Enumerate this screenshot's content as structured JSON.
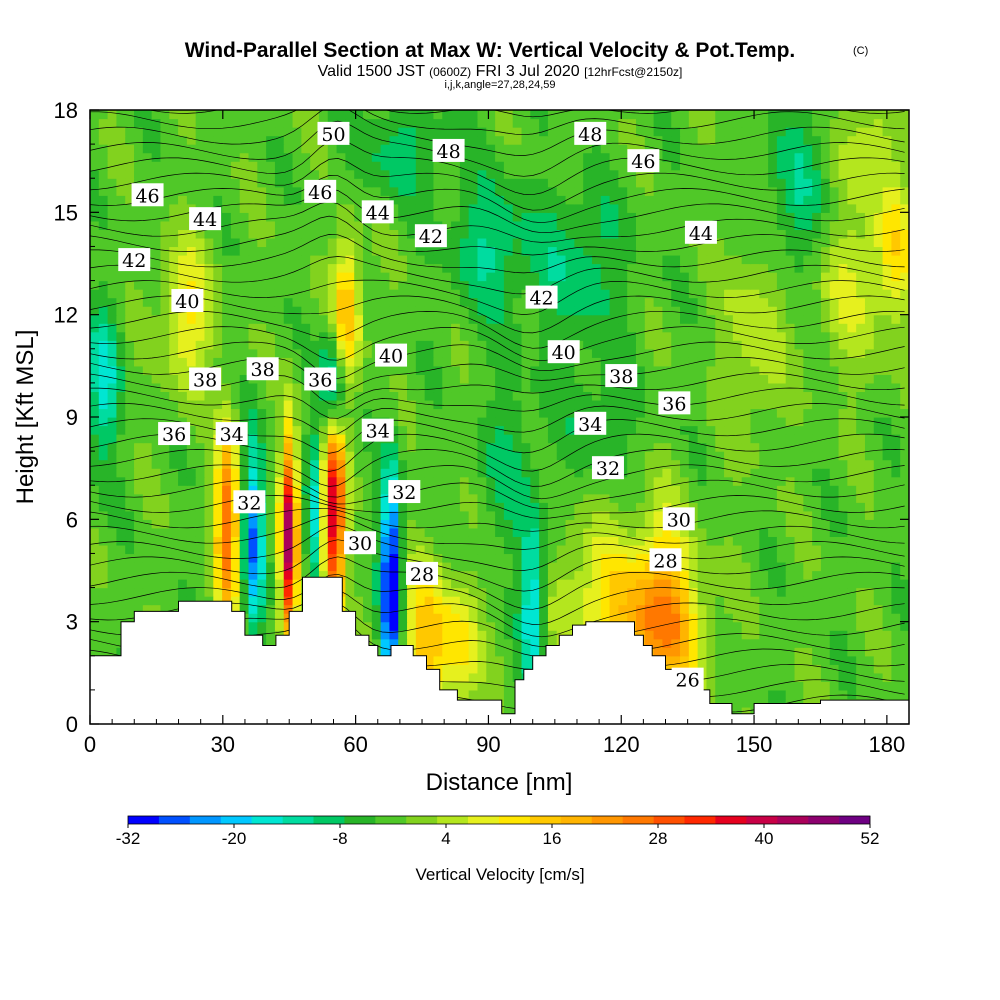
{
  "chart_data": {
    "type": "heatmap",
    "title": "Wind-Parallel Section at Max W: Vertical Velocity & Pot.Temp.",
    "title_mark": "(C)",
    "subtitle": {
      "valid_prefix": "Valid 1500 JST",
      "utc": "(0600Z)",
      "date": "FRI 3 Jul 2020",
      "forecast": "[12hrFcst@2150z]"
    },
    "grid_info": "i,j,k,angle=27,28,24,59",
    "xlabel": "Distance [nm]",
    "ylabel": "Height [Kft MSL]",
    "xlim": [
      0,
      185
    ],
    "ylim": [
      0,
      18
    ],
    "xticks": [
      0,
      30,
      60,
      90,
      120,
      150,
      180
    ],
    "yticks": [
      0,
      3,
      6,
      9,
      12,
      15,
      18
    ],
    "colorbar": {
      "title": "Vertical Velocity [cm/s]",
      "ticks": [
        -32,
        -20,
        -8,
        4,
        16,
        28,
        40,
        52
      ],
      "colors": [
        "#0000ff",
        "#0050ff",
        "#0096ff",
        "#00c8ff",
        "#00e6d2",
        "#00dca0",
        "#00c864",
        "#28b428",
        "#50c828",
        "#82d21e",
        "#b4e61e",
        "#e6f01e",
        "#ffe600",
        "#ffc800",
        "#ffb400",
        "#ff9600",
        "#ff7800",
        "#ff5000",
        "#ff2800",
        "#e6001e",
        "#c80046",
        "#aa005a",
        "#8c006e",
        "#6e0082"
      ]
    },
    "theta_labels": [
      {
        "text": "50",
        "x": 55,
        "y": 17.3
      },
      {
        "text": "48",
        "x": 81,
        "y": 16.8
      },
      {
        "text": "48",
        "x": 113,
        "y": 17.3
      },
      {
        "text": "46",
        "x": 13,
        "y": 15.5
      },
      {
        "text": "46",
        "x": 52,
        "y": 15.6
      },
      {
        "text": "46",
        "x": 125,
        "y": 16.5
      },
      {
        "text": "44",
        "x": 26,
        "y": 14.8
      },
      {
        "text": "44",
        "x": 65,
        "y": 15.0
      },
      {
        "text": "44",
        "x": 138,
        "y": 14.4
      },
      {
        "text": "42",
        "x": 10,
        "y": 13.6
      },
      {
        "text": "42",
        "x": 77,
        "y": 14.3
      },
      {
        "text": "42",
        "x": 102,
        "y": 12.5
      },
      {
        "text": "40",
        "x": 22,
        "y": 12.4
      },
      {
        "text": "40",
        "x": 68,
        "y": 10.8
      },
      {
        "text": "40",
        "x": 107,
        "y": 10.9
      },
      {
        "text": "38",
        "x": 26,
        "y": 10.1
      },
      {
        "text": "38",
        "x": 39,
        "y": 10.4
      },
      {
        "text": "38",
        "x": 120,
        "y": 10.2
      },
      {
        "text": "36",
        "x": 19,
        "y": 8.5
      },
      {
        "text": "36",
        "x": 52,
        "y": 10.1
      },
      {
        "text": "36",
        "x": 132,
        "y": 9.4
      },
      {
        "text": "34",
        "x": 32,
        "y": 8.5
      },
      {
        "text": "34",
        "x": 65,
        "y": 8.6
      },
      {
        "text": "34",
        "x": 113,
        "y": 8.8
      },
      {
        "text": "32",
        "x": 36,
        "y": 6.5
      },
      {
        "text": "32",
        "x": 71,
        "y": 6.8
      },
      {
        "text": "32",
        "x": 117,
        "y": 7.5
      },
      {
        "text": "30",
        "x": 61,
        "y": 5.3
      },
      {
        "text": "30",
        "x": 133,
        "y": 6.0
      },
      {
        "text": "28",
        "x": 75,
        "y": 4.4
      },
      {
        "text": "28",
        "x": 130,
        "y": 4.8
      },
      {
        "text": "26",
        "x": 135,
        "y": 1.3
      }
    ],
    "terrain": [
      [
        0,
        2.0
      ],
      [
        7,
        2.0
      ],
      [
        7,
        3.0
      ],
      [
        10,
        3.0
      ],
      [
        10,
        3.3
      ],
      [
        20,
        3.3
      ],
      [
        20,
        3.6
      ],
      [
        32,
        3.6
      ],
      [
        32,
        3.3
      ],
      [
        35,
        3.3
      ],
      [
        35,
        2.6
      ],
      [
        39,
        2.6
      ],
      [
        39,
        2.3
      ],
      [
        42,
        2.3
      ],
      [
        42,
        2.6
      ],
      [
        45,
        2.6
      ],
      [
        45,
        3.3
      ],
      [
        48,
        3.3
      ],
      [
        48,
        4.3
      ],
      [
        57,
        4.3
      ],
      [
        57,
        3.3
      ],
      [
        60,
        3.3
      ],
      [
        60,
        2.6
      ],
      [
        63,
        2.6
      ],
      [
        63,
        2.3
      ],
      [
        65,
        2.3
      ],
      [
        65,
        2.0
      ],
      [
        68,
        2.0
      ],
      [
        68,
        2.3
      ],
      [
        73,
        2.3
      ],
      [
        73,
        2.0
      ],
      [
        76,
        2.0
      ],
      [
        76,
        1.6
      ],
      [
        79,
        1.6
      ],
      [
        79,
        1.0
      ],
      [
        83,
        1.0
      ],
      [
        83,
        0.7
      ],
      [
        93,
        0.7
      ],
      [
        93,
        0.3
      ],
      [
        96,
        0.3
      ],
      [
        96,
        1.3
      ],
      [
        98,
        1.3
      ],
      [
        98,
        1.6
      ],
      [
        100,
        1.6
      ],
      [
        100,
        2.0
      ],
      [
        103,
        2.0
      ],
      [
        103,
        2.3
      ],
      [
        106,
        2.3
      ],
      [
        106,
        2.6
      ],
      [
        109,
        2.6
      ],
      [
        109,
        2.9
      ],
      [
        112,
        2.9
      ],
      [
        112,
        3.0
      ],
      [
        123,
        3.0
      ],
      [
        123,
        2.6
      ],
      [
        125,
        2.6
      ],
      [
        125,
        2.3
      ],
      [
        127,
        2.3
      ],
      [
        127,
        2.0
      ],
      [
        130,
        2.0
      ],
      [
        130,
        1.6
      ],
      [
        133,
        1.6
      ],
      [
        133,
        1.3
      ],
      [
        137,
        1.3
      ],
      [
        137,
        1.0
      ],
      [
        140,
        1.0
      ],
      [
        140,
        0.6
      ],
      [
        145,
        0.6
      ],
      [
        145,
        0.3
      ],
      [
        150,
        0.3
      ],
      [
        150,
        0.6
      ],
      [
        165,
        0.6
      ],
      [
        165,
        0.7
      ],
      [
        185,
        0.7
      ]
    ]
  }
}
